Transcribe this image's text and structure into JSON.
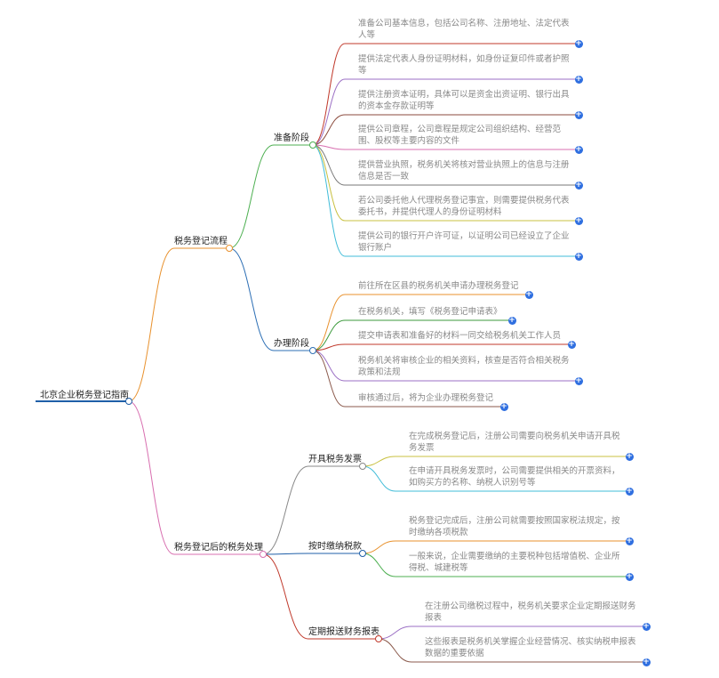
{
  "root": {
    "label": "北京企业税务登记指南",
    "color": "#1f5fa8"
  },
  "branches": [
    {
      "label": "税务登记流程",
      "color": "#e8912d",
      "children": [
        {
          "label": "准备阶段",
          "color": "#4caf50",
          "children": [
            {
              "text": "准备公司基本信息，包括公司名称、注册地址、法定代表人等",
              "color": "#c0392b"
            },
            {
              "text": "提供法定代表人身份证明材料，如身份证复印件或者护照等",
              "color": "#9b6fc4"
            },
            {
              "text": "提供注册资本证明，具体可以是资金出资证明、银行出具的资本金存款证明等",
              "color": "#8b4a3c"
            },
            {
              "text": "提供公司章程，公司章程是规定公司组织结构、经营范围、股权等主要内容的文件",
              "color": "#d86fb0"
            },
            {
              "text": "提供营业执照，税务机关将核对营业执照上的信息与注册信息是否一致",
              "color": "#777777"
            },
            {
              "text": "若公司委托他人代理税务登记事宜，则需要提供税务代表委托书，并提供代理人的身份证明材料",
              "color": "#c8c040"
            },
            {
              "text": "提供公司的银行开户许可证，以证明公司已经设立了企业银行账户",
              "color": "#40bcd8"
            }
          ]
        },
        {
          "label": "办理阶段",
          "color": "#2d6fb5",
          "children": [
            {
              "text": "前往所在区县的税务机关申请办理税务登记",
              "color": "#e8912d"
            },
            {
              "text": "在税务机关，填写《税务登记申请表》",
              "color": "#3c9a3c"
            },
            {
              "text": "提交申请表和准备好的材料一同交给税务机关工作人员",
              "color": "#c0392b"
            },
            {
              "text": "税务机关将审核企业的相关资料，核查是否符合相关税务政策和法规",
              "color": "#9b6fc4"
            },
            {
              "text": "审核通过后，将为企业办理税务登记",
              "color": "#8b5a4c"
            }
          ]
        }
      ]
    },
    {
      "label": "税务登记后的税务处理",
      "color": "#d86fb0",
      "children": [
        {
          "label": "开具税务发票",
          "color": "#888888",
          "children": [
            {
              "text": "在完成税务登记后，注册公司需要向税务机关申请开具税务发票",
              "color": "#c8c040"
            },
            {
              "text": "在申请开具税务发票时，公司需要提供相关的开票资料，如购买方的名称、纳税人识别号等",
              "color": "#40bcd8"
            }
          ]
        },
        {
          "label": "按时缴纳税款",
          "color": "#1f5fa8",
          "children": [
            {
              "text": "税务登记完成后，注册公司就需要按照国家税法规定，按时缴纳各项税款",
              "color": "#e8912d"
            },
            {
              "text": "一般来说，企业需要缴纳的主要税种包括增值税、企业所得税、城建税等",
              "color": "#4caf50"
            }
          ]
        },
        {
          "label": "定期报送财务报表",
          "color": "#c0392b",
          "children": [
            {
              "text": "在注册公司缴税过程中，税务机关要求企业定期报送财务报表",
              "color": "#9b6fc4"
            },
            {
              "text": "这些报表是税务机关掌握企业经营情况、核实纳税申报表数据的重要依据",
              "color": "#8b5a4c"
            }
          ]
        }
      ]
    }
  ],
  "icons": {
    "expand": "plus-circle-icon",
    "expand_glyph": "+"
  }
}
